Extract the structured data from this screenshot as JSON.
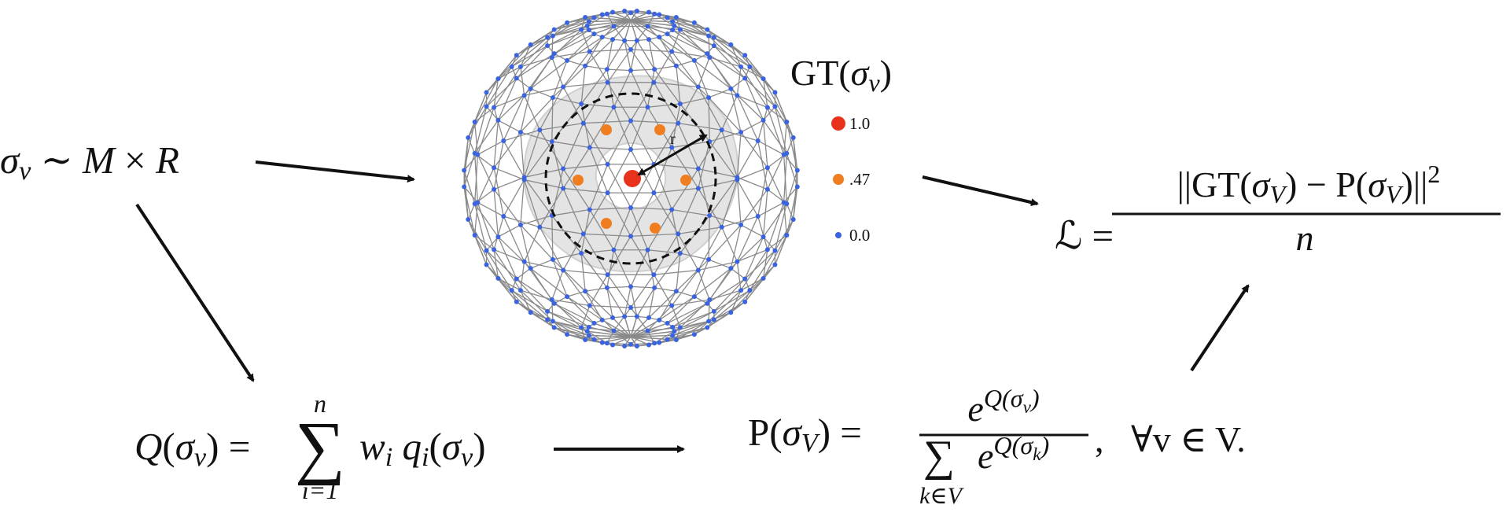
{
  "sampling": [
    "σ",
    "v",
    " ∼ ",
    "M",
    " × ",
    "R"
  ],
  "sphere": {
    "radius_label": "r",
    "legend_title": [
      "GT(",
      "σ",
      "v",
      ")"
    ],
    "legend": [
      "1.0",
      ".47",
      "0.0"
    ]
  },
  "loss": {
    "lhs": [
      "ℒ",
      " ="
    ],
    "numerator": [
      "||GT(",
      "σ",
      "V",
      ") − P(",
      "σ",
      "V",
      ")||",
      "2"
    ],
    "denominator": "n"
  },
  "q_formula": {
    "lhs": [
      "Q",
      "(",
      "σ",
      "v",
      ") ="
    ],
    "sum": "∑",
    "upper": "n",
    "lower": "i=1",
    "term": [
      "w",
      "i",
      " q",
      "i",
      "(",
      "σ",
      "v",
      ")"
    ]
  },
  "p_formula": {
    "lhs": [
      "P(",
      "σ",
      "V",
      ") ="
    ],
    "numerator": [
      "e",
      "Q(σ",
      "v",
      ")"
    ],
    "sum": "∑",
    "lower": "k∈V",
    "denominator": [
      "e",
      "Q(σ",
      "k",
      ")"
    ],
    "quantifier": ",   ∀v ∈ V."
  }
}
